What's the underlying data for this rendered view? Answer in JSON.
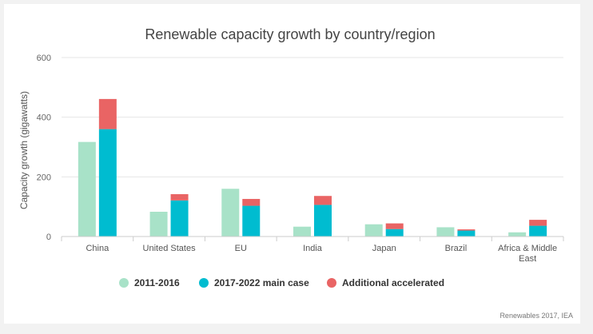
{
  "chart_data": {
    "type": "bar",
    "title": "Renewable capacity growth by country/region",
    "xlabel": "",
    "ylabel": "Capacity growth (gigawatts)",
    "ylim": [
      0,
      600
    ],
    "yticks": [
      0,
      200,
      400,
      600
    ],
    "grid": true,
    "legend_position": "bottom",
    "categories": [
      "China",
      "United States",
      "EU",
      "India",
      "Japan",
      "Brazil",
      "Africa & Middle East"
    ],
    "series": [
      {
        "name": "2011-2016",
        "color": "#a8e2c8",
        "stack": "historic",
        "values": [
          317,
          83,
          160,
          33,
          41,
          31,
          14
        ]
      },
      {
        "name": "2017-2022 main case",
        "color": "#00bcd0",
        "stack": "forecast",
        "values": [
          360,
          121,
          103,
          106,
          25,
          20,
          36
        ]
      },
      {
        "name": "Additional accelerated",
        "color": "#e96464",
        "stack": "forecast",
        "values": [
          101,
          21,
          23,
          30,
          19,
          4,
          20
        ]
      }
    ],
    "credit": "Renewables 2017, IEA"
  }
}
